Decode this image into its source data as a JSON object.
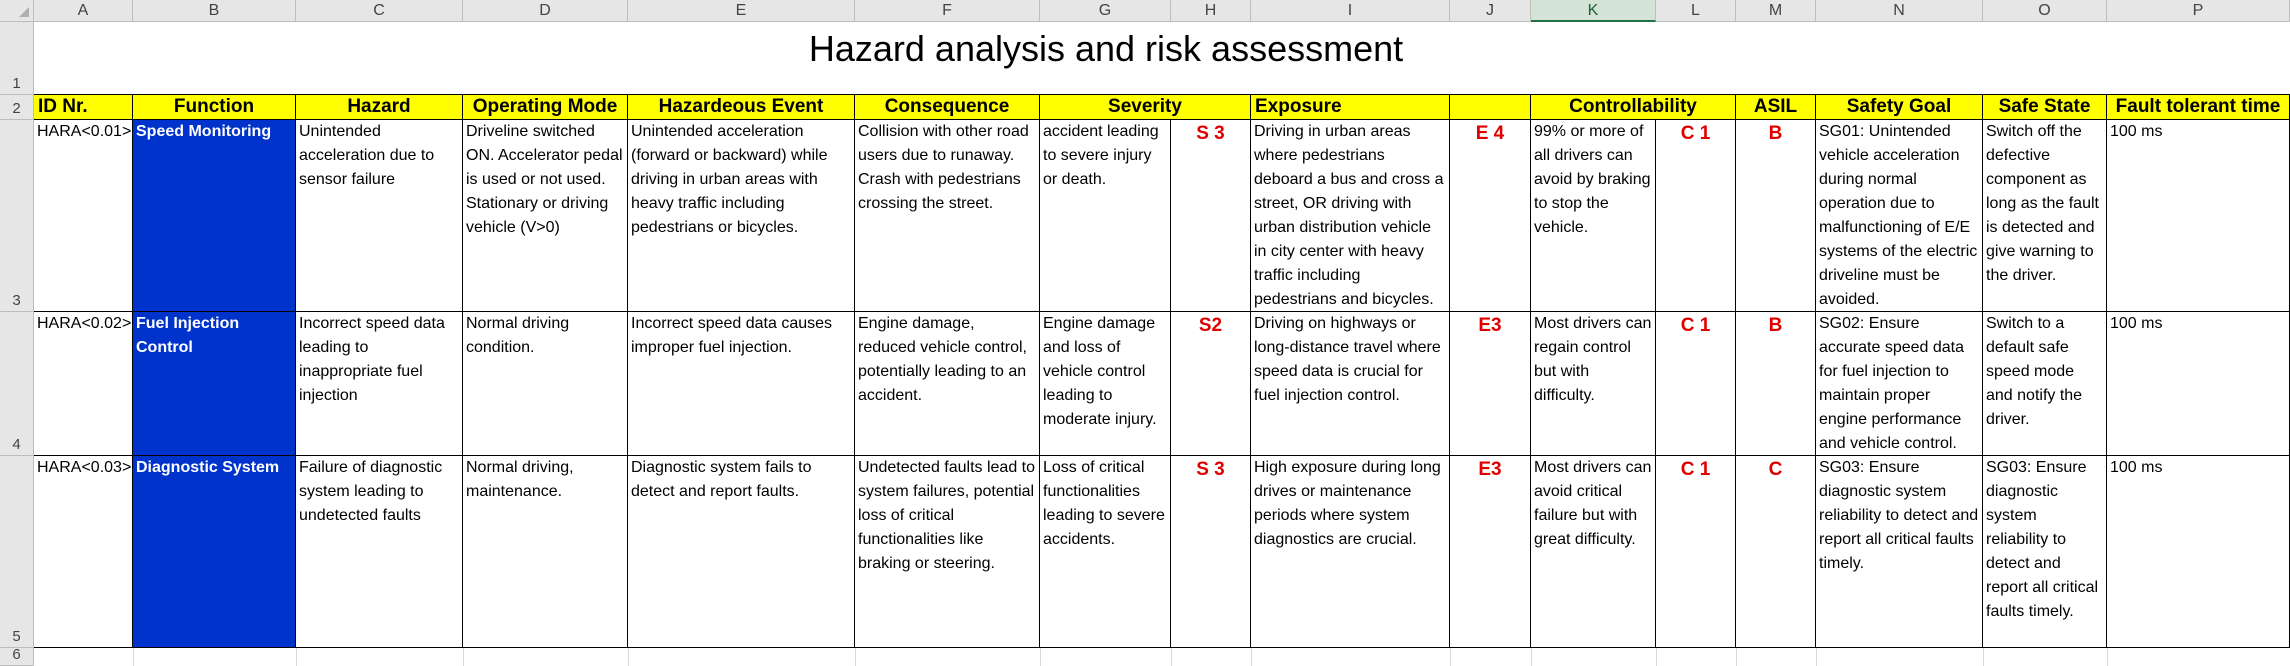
{
  "column_headers": [
    "A",
    "B",
    "C",
    "D",
    "E",
    "F",
    "G",
    "H",
    "I",
    "J",
    "K",
    "L",
    "M",
    "N",
    "O",
    "P"
  ],
  "row_numbers": [
    "1",
    "2",
    "3",
    "4",
    "5",
    "6"
  ],
  "title": "Hazard analysis and risk assessment",
  "table_headers": {
    "id": "ID Nr.",
    "function": "Function",
    "hazard": "Hazard",
    "operating_mode": "Operating Mode",
    "hazardous_event": "Hazardeous Event",
    "consequence": "Consequence",
    "severity": "Severity",
    "exposure": "Exposure",
    "controllability": "Controllability",
    "asil": "ASIL",
    "safety_goal": "Safety Goal",
    "safe_state": "Safe State",
    "fault_tolerant_time": "Fault tolerant time"
  },
  "rows": [
    {
      "id": "HARA<0.01>",
      "function": "Speed Monitoring",
      "hazard": "Unintended acceleration due to sensor failure",
      "operating_mode": "Driveline switched ON. Accelerator pedal is used or not used. Stationary or driving vehicle (V>0)",
      "hazardous_event": "Unintended acceleration (forward or backward) while driving in urban areas with heavy traffic including pedestrians or bicycles.",
      "consequence": "Collision with other road users due to runaway. Crash with pedestrians crossing the street.",
      "severity_text": "accident leading to severe injury or death.",
      "severity_class": "S 3",
      "exposure_text": "Driving in urban areas where pedestrians deboard a bus and cross a street, OR driving with urban distribution vehicle in city center with heavy traffic including pedestrians and bicycles.",
      "exposure_class": "E 4",
      "controllability_text": "99% or more of all drivers can avoid by braking to stop the vehicle.",
      "controllability_class": "C 1",
      "asil": "B",
      "safety_goal": "SG01: Unintended vehicle acceleration during normal operation due to malfunctioning of E/E systems of the electric driveline must be avoided.",
      "safe_state": "Switch off the defective component as long as the fault is detected and give warning to the driver.",
      "fault_tolerant_time": "100 ms"
    },
    {
      "id": "HARA<0.02>",
      "function": "Fuel Injection Control",
      "hazard": "Incorrect speed data leading to inappropriate fuel injection",
      "operating_mode": "Normal driving condition.",
      "hazardous_event": "Incorrect speed data causes improper fuel injection.",
      "consequence": "Engine damage, reduced vehicle control, potentially leading to an accident.",
      "severity_text": "Engine damage and loss of vehicle control leading to moderate injury.",
      "severity_class": "S2",
      "exposure_text": "Driving on highways or long-distance travel where speed data is crucial for fuel injection control.",
      "exposure_class": "E3",
      "controllability_text": "Most drivers can regain control but with difficulty.",
      "controllability_class": "C 1",
      "asil": "B",
      "safety_goal": "SG02: Ensure accurate speed data for fuel injection to maintain proper engine performance and vehicle control.",
      "safe_state": "Switch to a default safe speed mode and notify the driver.",
      "fault_tolerant_time": "100 ms"
    },
    {
      "id": "HARA<0.03>",
      "function": "Diagnostic System",
      "hazard": "Failure of diagnostic system leading to undetected faults",
      "operating_mode": "Normal driving, maintenance.",
      "hazardous_event": "Diagnostic system fails to detect and report faults.",
      "consequence": "Undetected faults lead to system failures, potential loss of critical functionalities like braking or steering.",
      "severity_text": "Loss of critical functionalities leading to severe accidents.",
      "severity_class": "S 3",
      "exposure_text": "High exposure during long drives or maintenance periods where system diagnostics are crucial.",
      "exposure_class": "E3",
      "controllability_text": "Most drivers can avoid critical failure but with great difficulty.",
      "controllability_class": "C 1",
      "asil": "C",
      "safety_goal": "SG03: Ensure diagnostic system reliability to detect and report all critical faults timely.",
      "safe_state": "SG03: Ensure diagnostic system reliability to detect and report all critical faults timely.",
      "fault_tolerant_time": "100 ms"
    }
  ]
}
